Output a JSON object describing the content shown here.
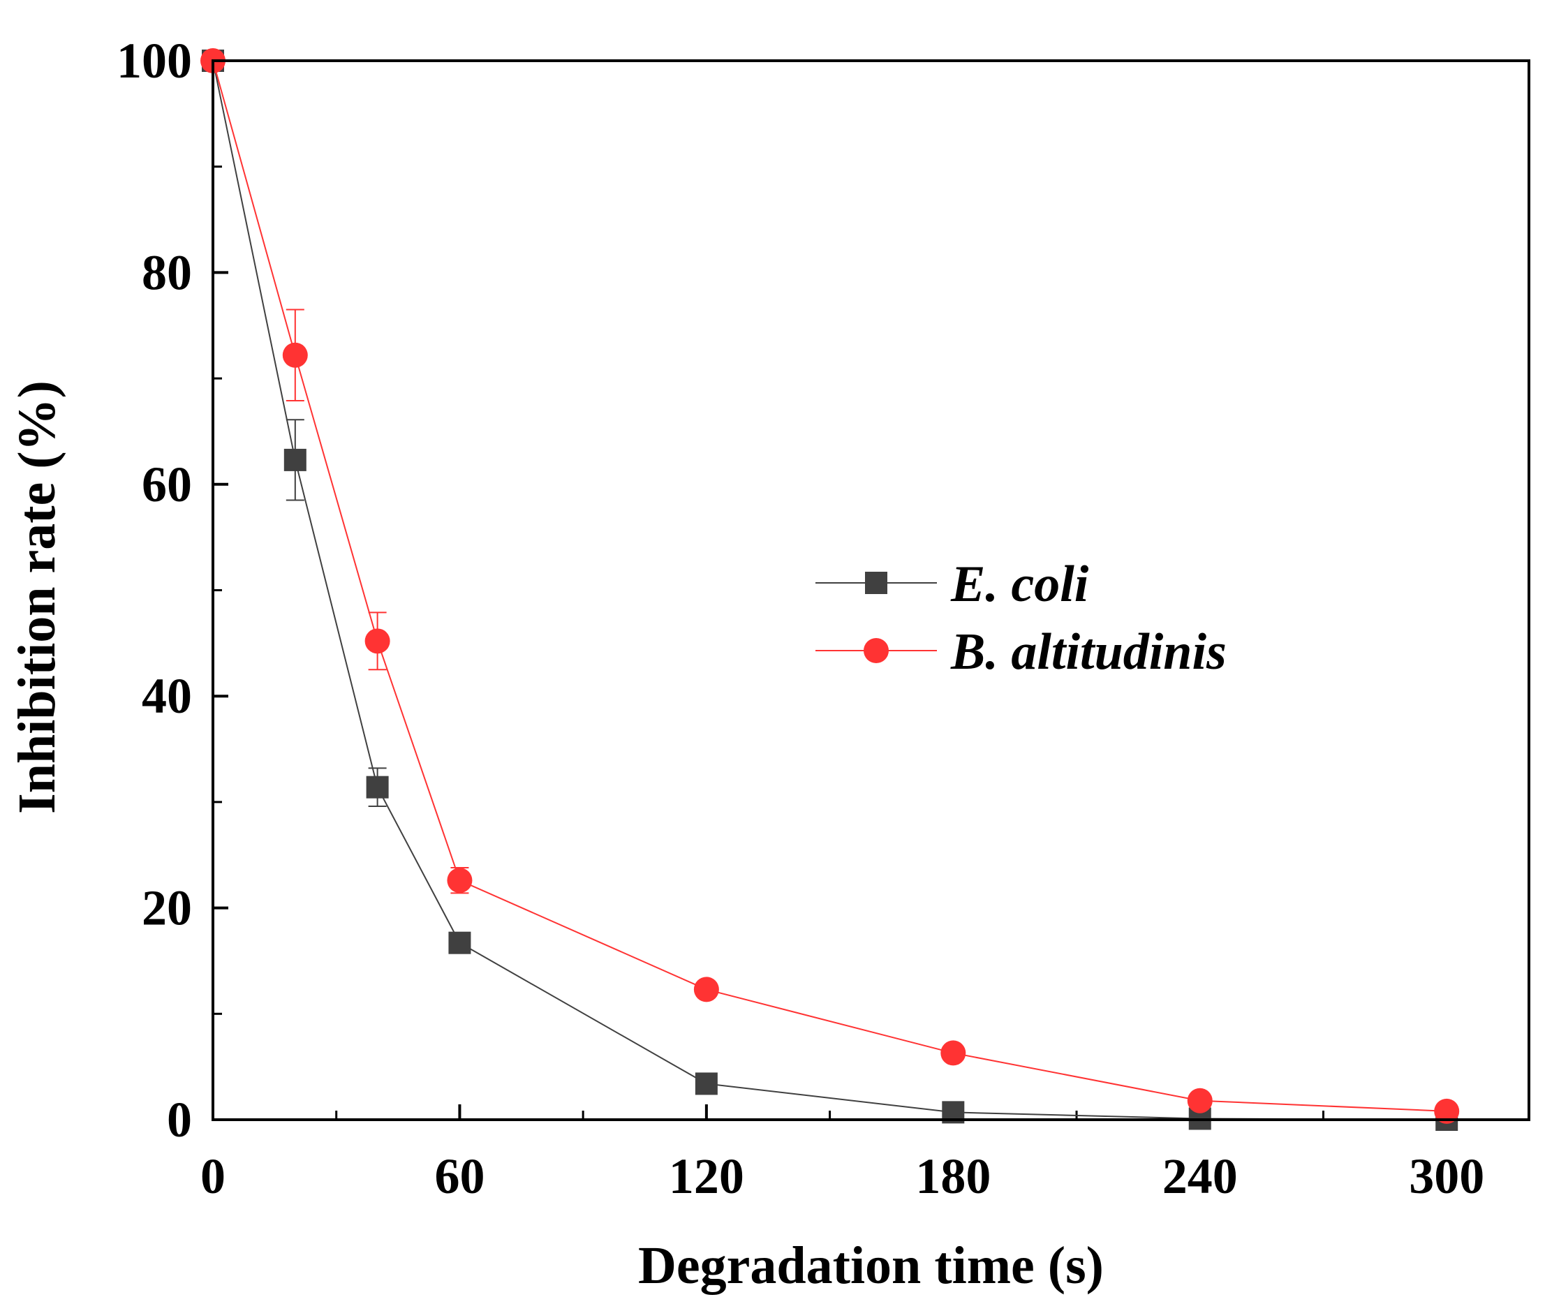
{
  "chart_data": {
    "type": "line",
    "title": "",
    "xlabel": "Degradation time (s)",
    "ylabel": "Inhibition rate (%)",
    "xlim": [
      0,
      320
    ],
    "ylim": [
      0,
      100
    ],
    "xticks": [
      0,
      60,
      120,
      180,
      240,
      300
    ],
    "xtick_labels": [
      "0",
      "60",
      "120",
      "180",
      "240",
      "300"
    ],
    "xminor": [
      30,
      90,
      150,
      210,
      270
    ],
    "yticks": [
      0,
      20,
      40,
      60,
      80,
      100
    ],
    "ytick_labels": [
      "0",
      "20",
      "40",
      "60",
      "80",
      "100"
    ],
    "yminor": [
      10,
      30,
      50,
      70,
      90
    ],
    "grid": false,
    "legend_position": "center-right",
    "series": [
      {
        "name": "E. coli",
        "color": "#404040",
        "marker": "square",
        "x": [
          0,
          20,
          40,
          60,
          120,
          180,
          240,
          300
        ],
        "y": [
          100,
          62.3,
          31.4,
          16.7,
          3.4,
          0.7,
          0.1,
          0.0
        ],
        "error": [
          0,
          3.8,
          1.8,
          0.5,
          0.3,
          0.3,
          0,
          0
        ]
      },
      {
        "name": "B. altitudinis",
        "color": "#ff3333",
        "marker": "circle",
        "x": [
          0,
          20,
          40,
          60,
          120,
          180,
          240,
          300
        ],
        "y": [
          100,
          72.2,
          45.2,
          22.6,
          12.3,
          6.3,
          1.8,
          0.8
        ],
        "error": [
          0,
          4.3,
          2.7,
          1.2,
          0.4,
          0.3,
          0.3,
          0.2
        ]
      }
    ]
  }
}
